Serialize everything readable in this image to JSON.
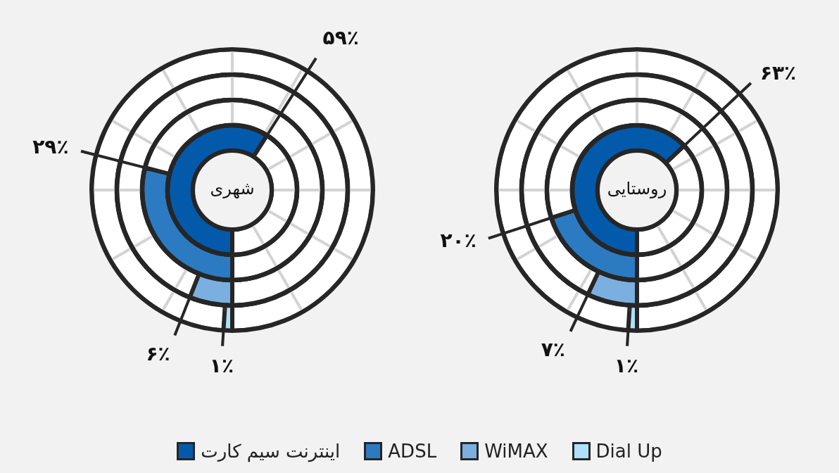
{
  "chart_data": [
    {
      "type": "donut",
      "title": "شهری",
      "categories": [
        "اینترنت سیم کارت",
        null
      ],
      "values": [
        59,
        41
      ],
      "colors": [
        "#035aab",
        "#ffffff"
      ],
      "value_labels": [
        "۵۹٪",
        null
      ],
      "legend": "bottom"
    },
    {
      "type": "donut",
      "categories": [
        "ADSL",
        null
      ],
      "values": [
        29,
        71
      ],
      "colors": [
        "#2c7bc2",
        "#ffffff"
      ],
      "value_labels": [
        "۲۹٪",
        null
      ],
      "legend": "bottom"
    },
    {
      "type": "donut",
      "categories": [
        "WiMAX",
        null
      ],
      "values": [
        6,
        94
      ],
      "colors": [
        "#7aafe0",
        "#ffffff"
      ],
      "value_labels": [
        "۶٪",
        null
      ],
      "legend": "bottom"
    },
    {
      "type": "donut",
      "categories": [
        "Dial Up",
        null
      ],
      "values": [
        1,
        99
      ],
      "colors": [
        "#aee0fa",
        "#ffffff"
      ],
      "value_labels": [
        "۱٪",
        null
      ],
      "legend": "bottom"
    },
    {
      "type": "donut",
      "title": "روستایی",
      "categories": [
        null,
        null
      ],
      "values": [
        63,
        37
      ],
      "colors": [
        "#035aab",
        "#ffffff"
      ],
      "value_labels": [
        "۶۳٪",
        null
      ]
    },
    {
      "type": "donut",
      "categories": [
        null,
        null
      ],
      "values": [
        20,
        80
      ],
      "colors": [
        "#2c7bc2",
        "#ffffff"
      ],
      "value_labels": [
        "۲۰٪",
        null
      ]
    },
    {
      "type": "donut",
      "categories": [
        null,
        null
      ],
      "values": [
        7,
        93
      ],
      "colors": [
        "#7aafe0",
        "#ffffff"
      ],
      "value_labels": [
        "۷٪",
        null
      ]
    },
    {
      "type": "donut",
      "categories": [
        null,
        null
      ],
      "values": [
        1,
        99
      ],
      "colors": [
        "#aee0fa",
        "#ffffff"
      ],
      "value_labels": [
        "۱٪",
        null
      ]
    }
  ]
}
